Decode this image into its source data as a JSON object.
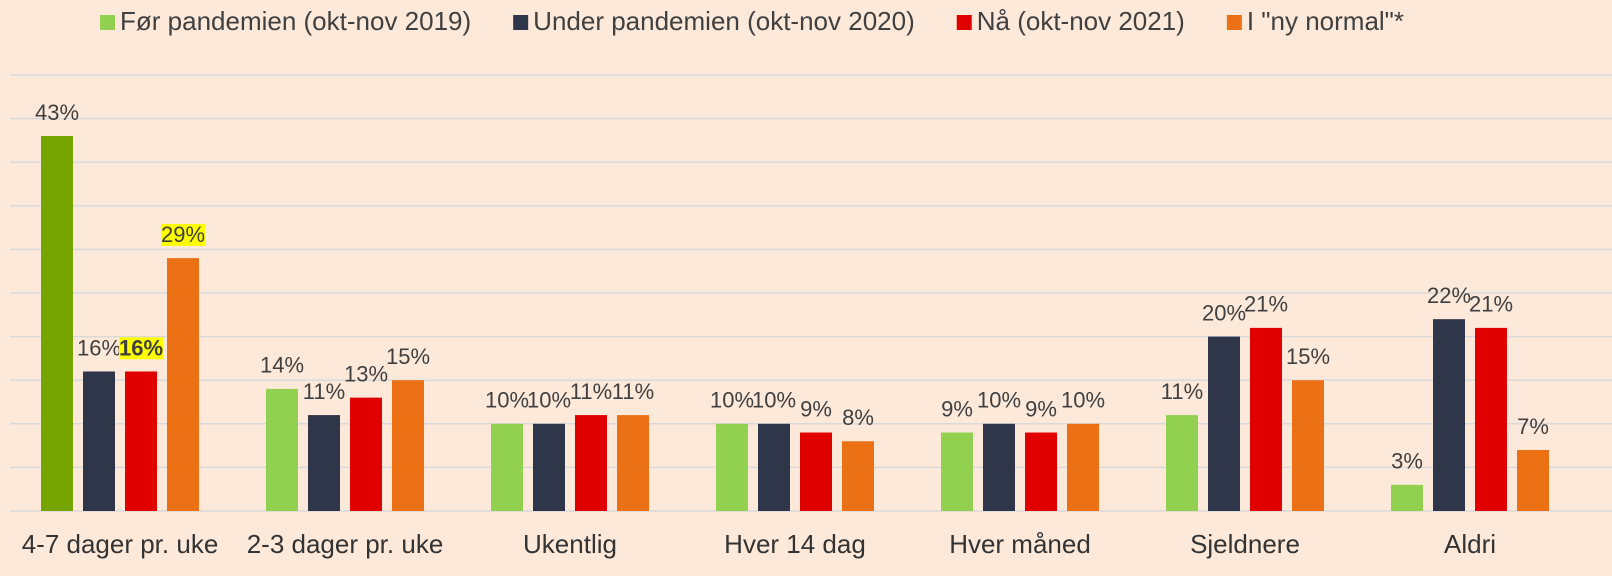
{
  "chart_data": {
    "type": "bar",
    "categories": [
      "4-7 dager pr. uke",
      "2-3 dager pr. uke",
      "Ukentlig",
      "Hver 14 dag",
      "Hver måned",
      "Sjeldnere",
      "Aldri"
    ],
    "series": [
      {
        "name": "Før pandemien (okt-nov 2019)",
        "color": "#92d050",
        "colors": [
          "#76a400",
          "#92d050",
          "#92d050",
          "#92d050",
          "#92d050",
          "#92d050",
          "#92d050"
        ],
        "values": [
          43,
          14,
          10,
          10,
          9,
          11,
          3
        ],
        "value_labels": [
          "43%",
          "14%",
          "10%",
          "10%",
          "9%",
          "11%",
          "3%"
        ]
      },
      {
        "name": "Under pandemien (okt-nov 2020)",
        "color": "#30364a",
        "values": [
          16,
          11,
          10,
          10,
          10,
          20,
          22
        ],
        "value_labels": [
          "16%",
          "11%",
          "10%",
          "10%",
          "10%",
          "20%",
          "22%"
        ]
      },
      {
        "name": "Nå (okt-nov 2021)",
        "color": "#e00000",
        "highlight": [
          0
        ],
        "bold": [
          0
        ],
        "values": [
          16,
          13,
          11,
          9,
          9,
          21,
          21
        ],
        "value_labels": [
          "16%",
          "13%",
          "11%",
          "9%",
          "9%",
          "21%",
          "21%"
        ]
      },
      {
        "name": "I \"ny normal\"*",
        "color": "#ec7014",
        "highlight": [
          0
        ],
        "values": [
          29,
          15,
          11,
          8,
          10,
          15,
          7
        ],
        "value_labels": [
          "29%",
          "15%",
          "11%",
          "8%",
          "10%",
          "15%",
          "7%"
        ]
      }
    ],
    "ylim": [
      0,
      50
    ],
    "yticks": [
      0,
      5,
      10,
      15,
      20,
      25,
      30,
      35,
      40,
      45,
      50
    ],
    "grid": true,
    "legend": "top",
    "highlight_color": "#ffff00"
  }
}
